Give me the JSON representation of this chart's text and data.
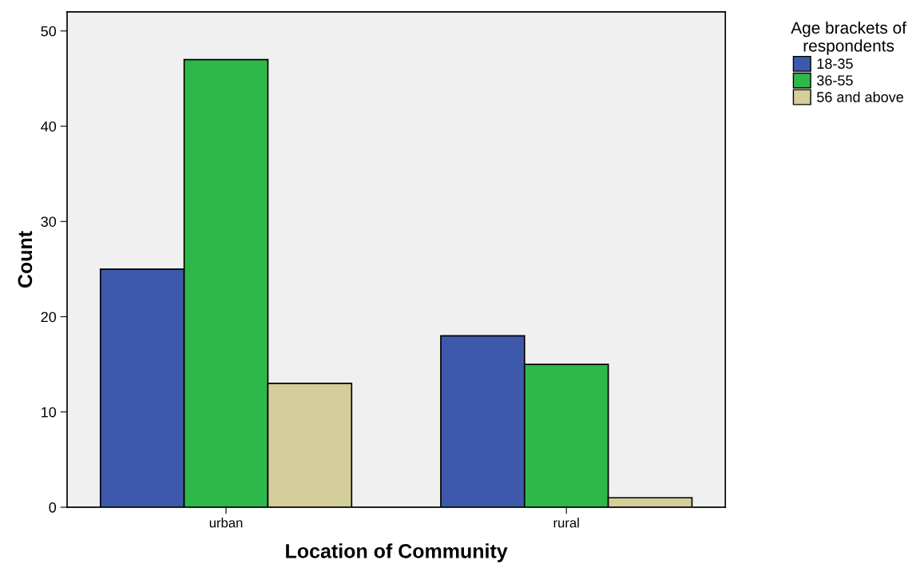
{
  "chart_data": {
    "type": "bar",
    "xlabel": "Location of Community",
    "ylabel": "Count",
    "legend_title": "Age brackets of\nrespondents",
    "categories": [
      "urban",
      "rural"
    ],
    "series": [
      {
        "name": "18-35",
        "color": "#3e58ac",
        "values": [
          25,
          18
        ]
      },
      {
        "name": "36-55",
        "color": "#2fb84a",
        "values": [
          47,
          15
        ]
      },
      {
        "name": "56 and above",
        "color": "#d3ce9a",
        "values": [
          13,
          1
        ]
      }
    ],
    "ylim": [
      0,
      52
    ],
    "yticks": [
      0,
      10,
      20,
      30,
      40,
      50
    ],
    "grid": false,
    "legend": "top right"
  }
}
